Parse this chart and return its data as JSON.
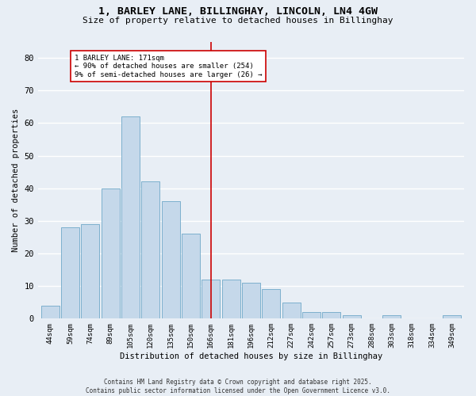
{
  "title_line1": "1, BARLEY LANE, BILLINGHAY, LINCOLN, LN4 4GW",
  "title_line2": "Size of property relative to detached houses in Billinghay",
  "xlabel": "Distribution of detached houses by size in Billinghay",
  "ylabel": "Number of detached properties",
  "categories": [
    "44sqm",
    "59sqm",
    "74sqm",
    "89sqm",
    "105sqm",
    "120sqm",
    "135sqm",
    "150sqm",
    "166sqm",
    "181sqm",
    "196sqm",
    "212sqm",
    "227sqm",
    "242sqm",
    "257sqm",
    "273sqm",
    "288sqm",
    "303sqm",
    "318sqm",
    "334sqm",
    "349sqm"
  ],
  "values": [
    4,
    28,
    29,
    40,
    62,
    42,
    36,
    26,
    12,
    12,
    11,
    9,
    5,
    2,
    2,
    1,
    0,
    1,
    0,
    0,
    1
  ],
  "bar_color": "#c5d8ea",
  "bar_edge_color": "#6fa8c8",
  "background_color": "#e8eef5",
  "grid_color": "#ffffff",
  "vline_color": "#cc0000",
  "annotation_title": "1 BARLEY LANE: 171sqm",
  "annotation_line1": "← 90% of detached houses are smaller (254)",
  "annotation_line2": "9% of semi-detached houses are larger (26) →",
  "annotation_box_color": "#ffffff",
  "annotation_box_edge": "#cc0000",
  "ylim": [
    0,
    85
  ],
  "yticks": [
    0,
    10,
    20,
    30,
    40,
    50,
    60,
    70,
    80
  ],
  "footer_line1": "Contains HM Land Registry data © Crown copyright and database right 2025.",
  "footer_line2": "Contains public sector information licensed under the Open Government Licence v3.0."
}
